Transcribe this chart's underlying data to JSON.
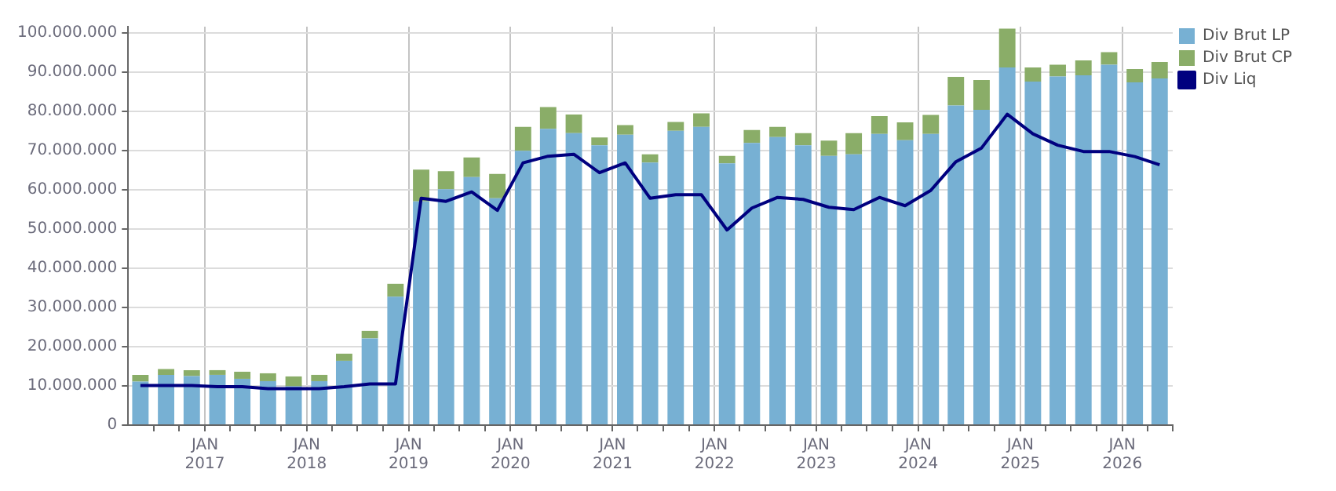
{
  "chart_data": {
    "type": "bar",
    "stacked": true,
    "x": [
      "2016-05-15",
      "2016-08-15",
      "2016-11-15",
      "2017-02-15",
      "2017-05-15",
      "2017-08-15",
      "2017-11-15",
      "2018-02-15",
      "2018-05-15",
      "2018-08-15",
      "2018-11-15",
      "2019-02-15",
      "2019-05-15",
      "2019-08-15",
      "2019-11-15",
      "2020-02-15",
      "2020-05-15",
      "2020-08-15",
      "2020-11-15",
      "2021-02-15",
      "2021-05-15",
      "2021-08-15",
      "2021-11-15",
      "2022-02-15",
      "2022-05-15",
      "2022-08-15",
      "2022-11-15",
      "2023-02-15",
      "2023-05-15",
      "2023-08-15",
      "2023-11-15",
      "2024-02-15",
      "2024-05-15",
      "2024-08-15",
      "2024-11-15",
      "2025-02-15",
      "2025-05-15",
      "2025-08-15",
      "2025-11-15",
      "2026-02-15",
      "2026-05-15"
    ],
    "series": [
      {
        "name": "Div Brut LP",
        "color": "#77b0d3",
        "values": [
          11100000,
          12800000,
          12500000,
          12800000,
          11800000,
          11200000,
          9900000,
          11200000,
          16400000,
          22100000,
          32700000,
          57000000,
          60100000,
          63200000,
          57800000,
          69900000,
          75500000,
          74400000,
          71300000,
          74000000,
          66900000,
          75000000,
          76000000,
          66700000,
          71900000,
          73400000,
          71300000,
          68600000,
          69000000,
          74200000,
          72600000,
          74200000,
          81400000,
          80300000,
          91100000,
          87500000,
          88800000,
          89100000,
          91800000,
          87300000,
          88300000
        ]
      },
      {
        "name": "Div Brut CP",
        "color": "#8aad68",
        "values": [
          1700000,
          1500000,
          1500000,
          1200000,
          1800000,
          2000000,
          2500000,
          1600000,
          1800000,
          1900000,
          3300000,
          8100000,
          4600000,
          5000000,
          6200000,
          6100000,
          5500000,
          4700000,
          2000000,
          2400000,
          2100000,
          2200000,
          3400000,
          1900000,
          3300000,
          2600000,
          3100000,
          3900000,
          5400000,
          4500000,
          4500000,
          4800000,
          7300000,
          7600000,
          9900000,
          3600000,
          3000000,
          3800000,
          3200000,
          3400000,
          4200000
        ]
      },
      {
        "name": "Div Liq",
        "type": "line",
        "color": "#00007f",
        "values": [
          10100000,
          10100000,
          10100000,
          9800000,
          9800000,
          9300000,
          9300000,
          9300000,
          9800000,
          10500000,
          10500000,
          57800000,
          57000000,
          59400000,
          54700000,
          66800000,
          68500000,
          69000000,
          64300000,
          66800000,
          57800000,
          58700000,
          58700000,
          49700000,
          55300000,
          58000000,
          57500000,
          55500000,
          54900000,
          58000000,
          55900000,
          59800000,
          67100000,
          70600000,
          79200000,
          74200000,
          71300000,
          69700000,
          69700000,
          68400000,
          66300000
        ]
      }
    ],
    "xlim": [
      "2016-04-01",
      "2026-07-01"
    ],
    "xticks": [
      {
        "value": "2016-07-01",
        "label": null
      },
      {
        "value": "2016-10-01",
        "label": null
      },
      {
        "value": "2017-01-01",
        "label": "JAN 2017"
      },
      {
        "value": "2017-04-01",
        "label": null
      },
      {
        "value": "2017-07-01",
        "label": null
      },
      {
        "value": "2017-10-01",
        "label": null
      },
      {
        "value": "2018-01-01",
        "label": "JAN 2018"
      },
      {
        "value": "2018-04-01",
        "label": null
      },
      {
        "value": "2018-07-01",
        "label": null
      },
      {
        "value": "2018-10-01",
        "label": null
      },
      {
        "value": "2019-01-01",
        "label": "JAN 2019"
      },
      {
        "value": "2019-04-01",
        "label": null
      },
      {
        "value": "2019-07-01",
        "label": null
      },
      {
        "value": "2019-10-01",
        "label": null
      },
      {
        "value": "2020-01-01",
        "label": "JAN 2020"
      },
      {
        "value": "2020-04-01",
        "label": null
      },
      {
        "value": "2020-07-01",
        "label": null
      },
      {
        "value": "2020-10-01",
        "label": null
      },
      {
        "value": "2021-01-01",
        "label": "JAN 2021"
      },
      {
        "value": "2021-04-01",
        "label": null
      },
      {
        "value": "2021-07-01",
        "label": null
      },
      {
        "value": "2021-10-01",
        "label": null
      },
      {
        "value": "2022-01-01",
        "label": "JAN 2022"
      },
      {
        "value": "2022-04-01",
        "label": null
      },
      {
        "value": "2022-07-01",
        "label": null
      },
      {
        "value": "2022-10-01",
        "label": null
      },
      {
        "value": "2023-01-01",
        "label": "JAN 2023"
      },
      {
        "value": "2023-04-01",
        "label": null
      },
      {
        "value": "2023-07-01",
        "label": null
      },
      {
        "value": "2023-10-01",
        "label": null
      },
      {
        "value": "2024-01-01",
        "label": "JAN 2024"
      },
      {
        "value": "2024-04-01",
        "label": null
      },
      {
        "value": "2024-07-01",
        "label": null
      },
      {
        "value": "2024-10-01",
        "label": null
      },
      {
        "value": "2025-01-01",
        "label": "JAN 2025"
      },
      {
        "value": "2025-04-01",
        "label": null
      },
      {
        "value": "2025-07-01",
        "label": null
      },
      {
        "value": "2025-10-01",
        "label": null
      },
      {
        "value": "2026-01-01",
        "label": "JAN 2026"
      },
      {
        "value": "2026-04-01",
        "label": null
      },
      {
        "value": "2026-07-01",
        "label": null
      }
    ],
    "ylim": [
      0,
      101500000
    ],
    "yticks": [
      {
        "value": 0,
        "label": "0"
      },
      {
        "value": 10000000,
        "label": "10.000.000"
      },
      {
        "value": 20000000,
        "label": "20.000.000"
      },
      {
        "value": 30000000,
        "label": "30.000.000"
      },
      {
        "value": 40000000,
        "label": "40.000.000"
      },
      {
        "value": 50000000,
        "label": "50.000.000"
      },
      {
        "value": 60000000,
        "label": "60.000.000"
      },
      {
        "value": 70000000,
        "label": "70.000.000"
      },
      {
        "value": 80000000,
        "label": "80.000.000"
      },
      {
        "value": 90000000,
        "label": "90.000.000"
      },
      {
        "value": 100000000,
        "label": "100.000.000"
      }
    ],
    "grid": true,
    "legend": "top right",
    "marker": "none",
    "line_style": "solid"
  }
}
